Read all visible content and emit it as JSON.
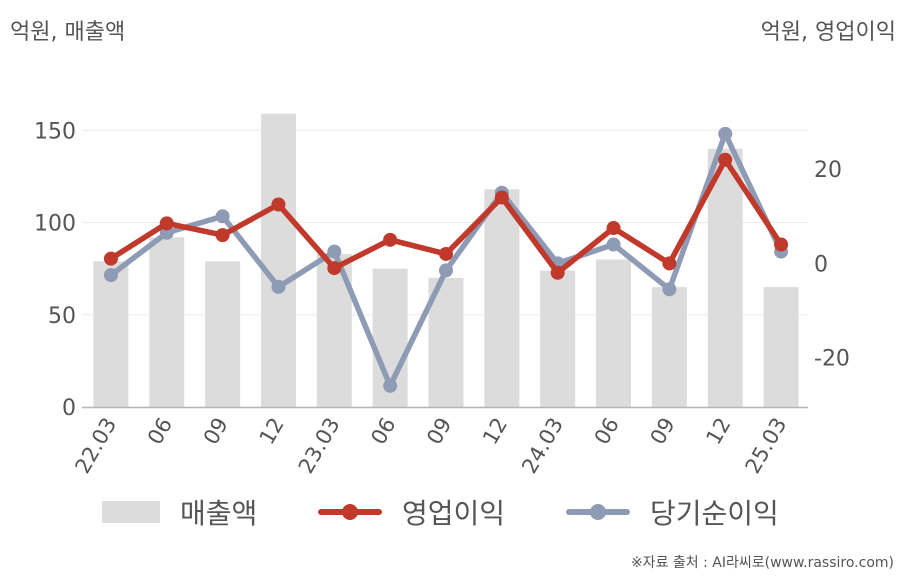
{
  "chart_data": {
    "type": "bar+line",
    "categories": [
      "22.03",
      "06",
      "09",
      "12",
      "23.03",
      "06",
      "09",
      "12",
      "24.03",
      "06",
      "09",
      "12",
      "25.03"
    ],
    "left_axis": {
      "label": "억원, 매출액",
      "ylim": [
        0,
        180
      ],
      "ticks": [
        0,
        50,
        100,
        150
      ]
    },
    "right_axis": {
      "label": "억원, 영업이익",
      "ylim": [
        -30.5,
        40
      ],
      "ticks": [
        -20,
        0,
        20
      ]
    },
    "series": [
      {
        "name": "매출액",
        "type": "bar",
        "axis": "left",
        "color": "#dcdcdc",
        "values": [
          79,
          92,
          79,
          159,
          83,
          75,
          70,
          118,
          74,
          80,
          65,
          140,
          65
        ]
      },
      {
        "name": "영업이익",
        "type": "line",
        "axis": "right",
        "color": "#c0392b",
        "values": [
          1,
          8.5,
          6,
          12.5,
          -1,
          5,
          2,
          14,
          -2,
          7.5,
          0,
          22,
          4
        ]
      },
      {
        "name": "당기순이익",
        "type": "line",
        "axis": "right",
        "color": "#8e9bb5",
        "values": [
          -2.5,
          6.5,
          10,
          -5,
          2.5,
          -26,
          -1.5,
          15,
          0,
          4,
          -5.5,
          27.5,
          2.5
        ]
      }
    ],
    "grid": true,
    "legend_position": "bottom"
  },
  "source_text": "※자료 출처 : AI라씨로(www.rassiro.com)"
}
